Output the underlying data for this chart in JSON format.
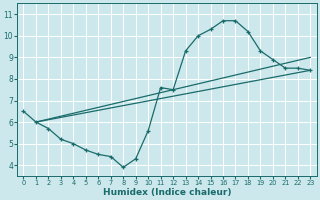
{
  "xlabel": "Humidex (Indice chaleur)",
  "bg_color": "#cce8ec",
  "grid_color": "#c8dfe3",
  "line_color": "#1a6b6b",
  "xlim": [
    -0.5,
    23.5
  ],
  "ylim": [
    3.5,
    11.5
  ],
  "xticks": [
    0,
    1,
    2,
    3,
    4,
    5,
    6,
    7,
    8,
    9,
    10,
    11,
    12,
    13,
    14,
    15,
    16,
    17,
    18,
    19,
    20,
    21,
    22,
    23
  ],
  "yticks": [
    4,
    5,
    6,
    7,
    8,
    9,
    10,
    11
  ],
  "curve_x": [
    0,
    1,
    2,
    3,
    4,
    5,
    6,
    7,
    8,
    9,
    10,
    11,
    12,
    13,
    14,
    15,
    16,
    17,
    18,
    19,
    20,
    21,
    22,
    23
  ],
  "curve_y": [
    6.5,
    6.0,
    5.7,
    5.2,
    5.0,
    4.7,
    4.5,
    4.4,
    3.9,
    4.3,
    5.6,
    7.6,
    7.5,
    9.3,
    10.0,
    10.3,
    10.7,
    10.7,
    10.2,
    9.3,
    8.9,
    8.5,
    8.5,
    8.4
  ],
  "line1_x": [
    1,
    23
  ],
  "line1_y": [
    6.0,
    9.0
  ],
  "line2_x": [
    1,
    23
  ],
  "line2_y": [
    6.0,
    8.4
  ],
  "figsize": [
    3.2,
    2.0
  ],
  "dpi": 100
}
